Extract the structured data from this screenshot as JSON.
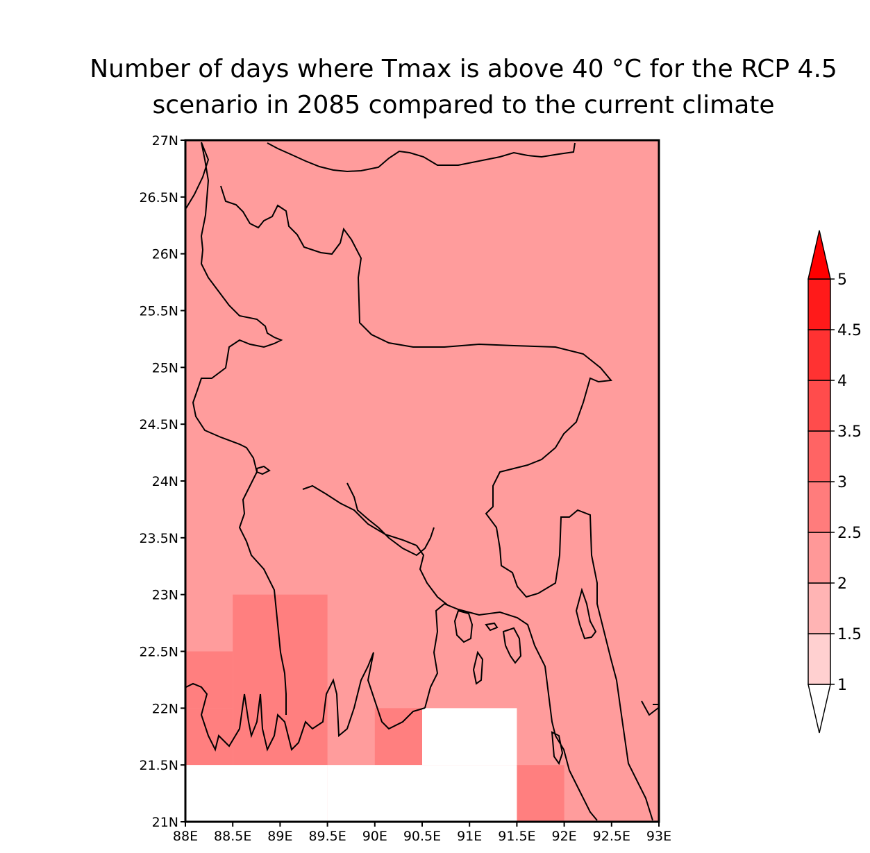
{
  "title": {
    "line1": "Number of days where Tmax is above 40 °C for the RCP 4.5",
    "line2": "scenario in 2085 compared to the current climate"
  },
  "map": {
    "lon_range": [
      88,
      93
    ],
    "lat_range": [
      21,
      27
    ],
    "x_ticks": [
      "88E",
      "88.5E",
      "89E",
      "89.5E",
      "90E",
      "90.5E",
      "91E",
      "91.5E",
      "92E",
      "92.5E",
      "93E"
    ],
    "y_ticks": [
      "21N",
      "21.5N",
      "22N",
      "22.5N",
      "23N",
      "23.5N",
      "24N",
      "24.5N",
      "25N",
      "25.5N",
      "26N",
      "26.5N",
      "27N"
    ],
    "background_value_class": "2-2.5",
    "cells": [
      {
        "lon": [
          88.0,
          88.5
        ],
        "lat": [
          22.0,
          22.5
        ],
        "class": "2.5-3"
      },
      {
        "lon": [
          88.0,
          88.5
        ],
        "lat": [
          21.5,
          22.0
        ],
        "class": "2.5-3"
      },
      {
        "lon": [
          88.5,
          89.5
        ],
        "lat": [
          21.5,
          23.0
        ],
        "class": "2.5-3"
      },
      {
        "lon": [
          90.0,
          90.5
        ],
        "lat": [
          21.5,
          22.0
        ],
        "class": "2.5-3"
      },
      {
        "lon": [
          91.5,
          92.0
        ],
        "lat": [
          21.0,
          21.5
        ],
        "class": "2.5-3"
      },
      {
        "lon": [
          88.0,
          89.5
        ],
        "lat": [
          21.0,
          21.5
        ],
        "class": "missing"
      },
      {
        "lon": [
          89.5,
          91.5
        ],
        "lat": [
          21.0,
          21.5
        ],
        "class": "missing"
      },
      {
        "lon": [
          90.5,
          91.5
        ],
        "lat": [
          21.5,
          22.0
        ],
        "class": "missing"
      }
    ]
  },
  "colorbar": {
    "labels": [
      "1",
      "1.5",
      "2",
      "2.5",
      "3",
      "3.5",
      "4",
      "4.5",
      "5"
    ],
    "colors": [
      "#ffffff",
      "#ffd0d0",
      "#ffb4b4",
      "#ff9898",
      "#ff7c7c",
      "#ff6464",
      "#ff4c4c",
      "#ff3232",
      "#ff1a1a",
      "#ff0000"
    ]
  }
}
